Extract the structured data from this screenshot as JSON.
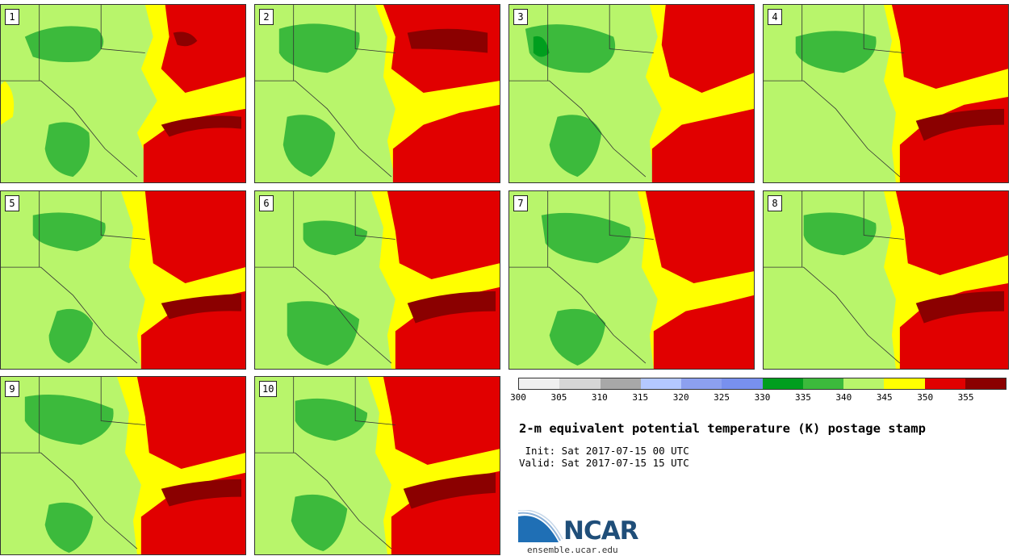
{
  "panels": [
    {
      "label": "1"
    },
    {
      "label": "2"
    },
    {
      "label": "3"
    },
    {
      "label": "4"
    },
    {
      "label": "5"
    },
    {
      "label": "6"
    },
    {
      "label": "7"
    },
    {
      "label": "8"
    },
    {
      "label": "9"
    },
    {
      "label": "10"
    }
  ],
  "legend": {
    "colors": [
      "#f0f0f0",
      "#d6d6d6",
      "#a8a8a8",
      "#b4c8ff",
      "#8ca0f0",
      "#7890ee",
      "#009e1e",
      "#3cba3c",
      "#b8f56b",
      "#ffff00",
      "#e10000",
      "#8b0000"
    ],
    "ticks": [
      "300",
      "305",
      "310",
      "315",
      "320",
      "325",
      "330",
      "335",
      "340",
      "345",
      "350",
      "355"
    ]
  },
  "title": "2-m equivalent potential temperature (K) postage stamp",
  "init": " Init: Sat 2017-07-15 00 UTC",
  "valid": "Valid: Sat 2017-07-15 15 UTC",
  "logo": {
    "text": "NCAR",
    "url": "ensemble.ucar.edu"
  }
}
